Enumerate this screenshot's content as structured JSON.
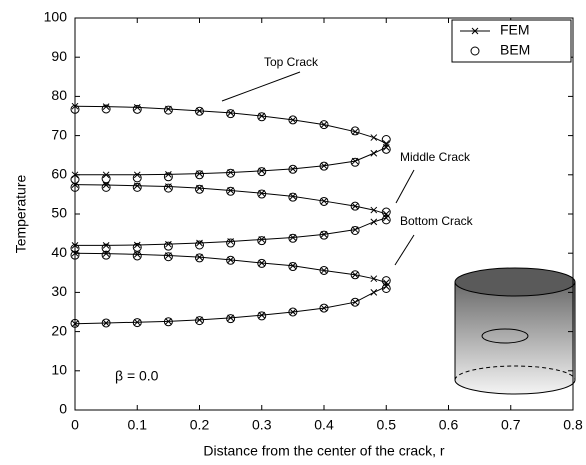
{
  "chart_data": {
    "type": "line",
    "xlabel": "Distance from the center of the crack, r",
    "ylabel": "Temperature",
    "xlim": [
      0,
      0.8
    ],
    "xticks": [
      0,
      0.1,
      0.2,
      0.3,
      0.4,
      0.5,
      0.6,
      0.7,
      0.8
    ],
    "ylim": [
      0,
      100
    ],
    "yticks": [
      0,
      10,
      20,
      30,
      40,
      50,
      60,
      70,
      80,
      90,
      100
    ],
    "legend": "upper right",
    "annotations": [
      "Top Crack",
      "Middle Crack",
      "Bottom Crack",
      "β = 0.0"
    ],
    "series": [
      {
        "name": "FEM",
        "color": "#000000",
        "marker": "x",
        "line": true,
        "x": [
          0,
          0.05,
          0.1,
          0.15,
          0.2,
          0.25,
          0.3,
          0.35,
          0.4,
          0.45,
          0.48,
          0.5,
          0.5,
          0.48,
          0.45,
          0.4,
          0.35,
          0.3,
          0.25,
          0.2,
          0.15,
          0.1,
          0.05,
          0,
          null,
          0,
          0.05,
          0.1,
          0.15,
          0.2,
          0.25,
          0.3,
          0.35,
          0.4,
          0.45,
          0.48,
          0.5,
          0.5,
          0.48,
          0.45,
          0.4,
          0.35,
          0.3,
          0.25,
          0.2,
          0.15,
          0.1,
          0.05,
          0,
          null,
          0,
          0.05,
          0.1,
          0.15,
          0.2,
          0.25,
          0.3,
          0.35,
          0.4,
          0.45,
          0.48,
          0.5,
          0.5,
          0.48,
          0.45,
          0.4,
          0.35,
          0.3,
          0.25,
          0.2,
          0.15,
          0.1,
          0.05,
          0
        ],
        "values": [
          77.5,
          77.4,
          77.2,
          76.8,
          76.3,
          75.8,
          75.0,
          74.0,
          72.8,
          71.0,
          69.5,
          68,
          67,
          65.5,
          63.5,
          62.3,
          61.5,
          61.0,
          60.6,
          60.3,
          60.1,
          60.0,
          60.0,
          60.0,
          null,
          57.5,
          57.4,
          57.2,
          57.0,
          56.6,
          56.0,
          55.3,
          54.5,
          53.3,
          52.0,
          51.0,
          50,
          49,
          48.0,
          46.0,
          44.8,
          44.0,
          43.5,
          43.0,
          42.6,
          42.3,
          42.1,
          42.0,
          42,
          null,
          40,
          39.9,
          39.7,
          39.4,
          39.0,
          38.3,
          37.5,
          36.8,
          35.6,
          34.5,
          33.5,
          32.5,
          31.5,
          30,
          27.5,
          26,
          25,
          24.2,
          23.5,
          23,
          22.6,
          22.4,
          22.2,
          22
        ]
      },
      {
        "name": "BEM",
        "color": "#000000",
        "marker": "o",
        "line": false,
        "x": [
          0,
          0.05,
          0.1,
          0.15,
          0.2,
          0.25,
          0.3,
          0.35,
          0.4,
          0.45,
          0.5,
          0.5,
          0.45,
          0.4,
          0.35,
          0.3,
          0.25,
          0.2,
          0.15,
          0.1,
          0.05,
          0,
          0,
          0.05,
          0.1,
          0.15,
          0.2,
          0.25,
          0.3,
          0.35,
          0.4,
          0.45,
          0.5,
          0.5,
          0.45,
          0.4,
          0.35,
          0.3,
          0.25,
          0.2,
          0.15,
          0.1,
          0.05,
          0,
          0,
          0.05,
          0.1,
          0.15,
          0.2,
          0.25,
          0.3,
          0.35,
          0.4,
          0.45,
          0.5,
          0.5,
          0.45,
          0.4,
          0.35,
          0.3,
          0.25,
          0.2,
          0.15,
          0.1,
          0.05,
          0
        ],
        "values": [
          76.7,
          76.8,
          76.7,
          76.5,
          76.2,
          75.6,
          74.8,
          74.0,
          72.8,
          71.2,
          69,
          66.5,
          63.2,
          62.2,
          61.4,
          60.8,
          60.4,
          60,
          59.5,
          59.2,
          59,
          58.8,
          56.8,
          56.8,
          56.8,
          56.6,
          56.3,
          55.8,
          55.1,
          54.3,
          53.2,
          52,
          50.5,
          48.5,
          45.8,
          44.6,
          43.8,
          43.2,
          42.6,
          42.1,
          41.8,
          41.5,
          41.3,
          41.2,
          39.5,
          39.5,
          39.3,
          39.1,
          38.8,
          38.2,
          37.4,
          36.6,
          35.6,
          34.5,
          33,
          31,
          27.5,
          26,
          25,
          24,
          23.3,
          22.8,
          22.5,
          22.3,
          22.2,
          22.1
        ]
      }
    ]
  }
}
